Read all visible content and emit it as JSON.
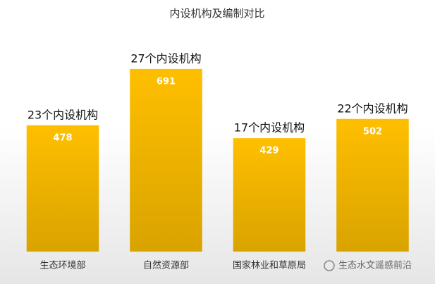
{
  "chart_data": {
    "type": "bar",
    "title": "内设机构及编制对比",
    "categories": [
      "生态环境部",
      "自然资源部",
      "国家林业和草原局",
      null
    ],
    "values": [
      478,
      691,
      429,
      502
    ],
    "annotations": [
      "23个内设机构",
      "27个内设机构",
      "17个内设机构",
      "22个内设机构"
    ],
    "color": "#f5b800",
    "ylim": [
      0,
      800
    ],
    "watermark": "生态水文遥感前沿"
  }
}
